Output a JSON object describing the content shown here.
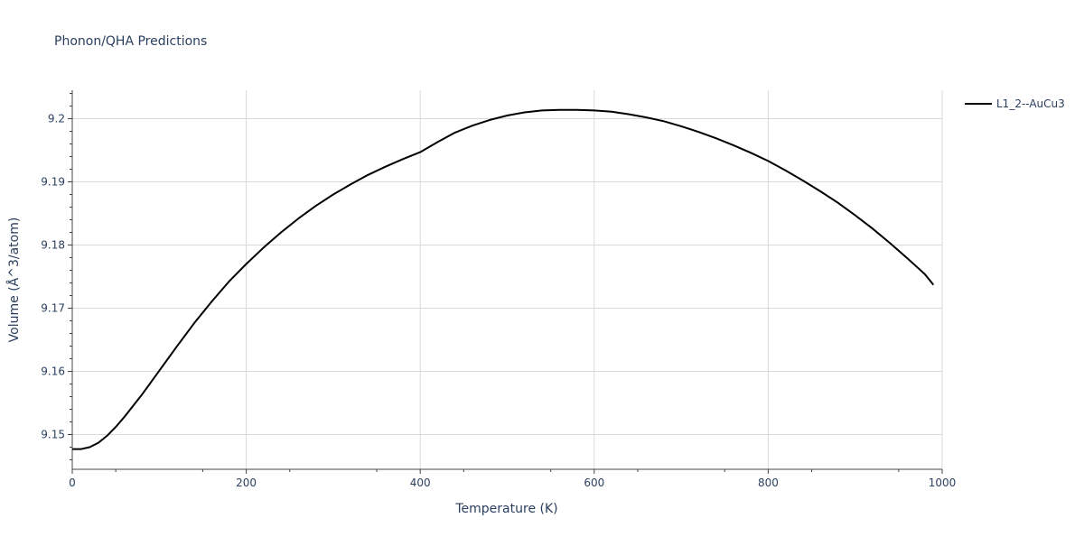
{
  "chart_data": {
    "type": "line",
    "title": "Phonon/QHA Predictions",
    "xlabel": "Temperature (K)",
    "ylabel": "Volume (Å^3/atom)",
    "xlim": [
      0,
      1000
    ],
    "ylim": [
      9.1445,
      9.2045
    ],
    "xticks": [
      0,
      200,
      400,
      600,
      800,
      1000
    ],
    "xtick_labels": [
      "0",
      "200",
      "400",
      "600",
      "800",
      "1000"
    ],
    "yticks": [
      9.15,
      9.16,
      9.17,
      9.18,
      9.19,
      9.2
    ],
    "ytick_labels": [
      "9.15",
      "9.16",
      "9.17",
      "9.18",
      "9.19",
      "9.2"
    ],
    "grid": true,
    "legend_position": "top-right",
    "series": [
      {
        "name": "L1_2--AuCu3",
        "color": "#000000",
        "x": [
          0,
          10,
          20,
          30,
          40,
          50,
          60,
          80,
          100,
          120,
          140,
          160,
          180,
          200,
          220,
          240,
          260,
          280,
          300,
          320,
          340,
          360,
          380,
          400,
          420,
          440,
          460,
          480,
          500,
          520,
          540,
          560,
          580,
          600,
          620,
          640,
          660,
          680,
          700,
          720,
          740,
          760,
          780,
          800,
          820,
          840,
          860,
          880,
          900,
          920,
          940,
          960,
          980,
          990
        ],
        "y": [
          9.1477,
          9.1477,
          9.148,
          9.1487,
          9.1498,
          9.1512,
          9.1528,
          9.1563,
          9.1601,
          9.1639,
          9.1676,
          9.171,
          9.1742,
          9.177,
          9.1796,
          9.182,
          9.1842,
          9.1862,
          9.188,
          9.1896,
          9.1911,
          9.1924,
          9.1936,
          9.1947,
          9.1963,
          9.1978,
          9.1989,
          9.1998,
          9.2005,
          9.201,
          9.2013,
          9.2014,
          9.2014,
          9.2013,
          9.2011,
          9.2007,
          9.2002,
          9.1996,
          9.1988,
          9.1979,
          9.1969,
          9.1958,
          9.1946,
          9.1933,
          9.1918,
          9.1902,
          9.1885,
          9.1867,
          9.1847,
          9.1826,
          9.1803,
          9.1779,
          9.1754,
          9.1737
        ]
      }
    ]
  }
}
